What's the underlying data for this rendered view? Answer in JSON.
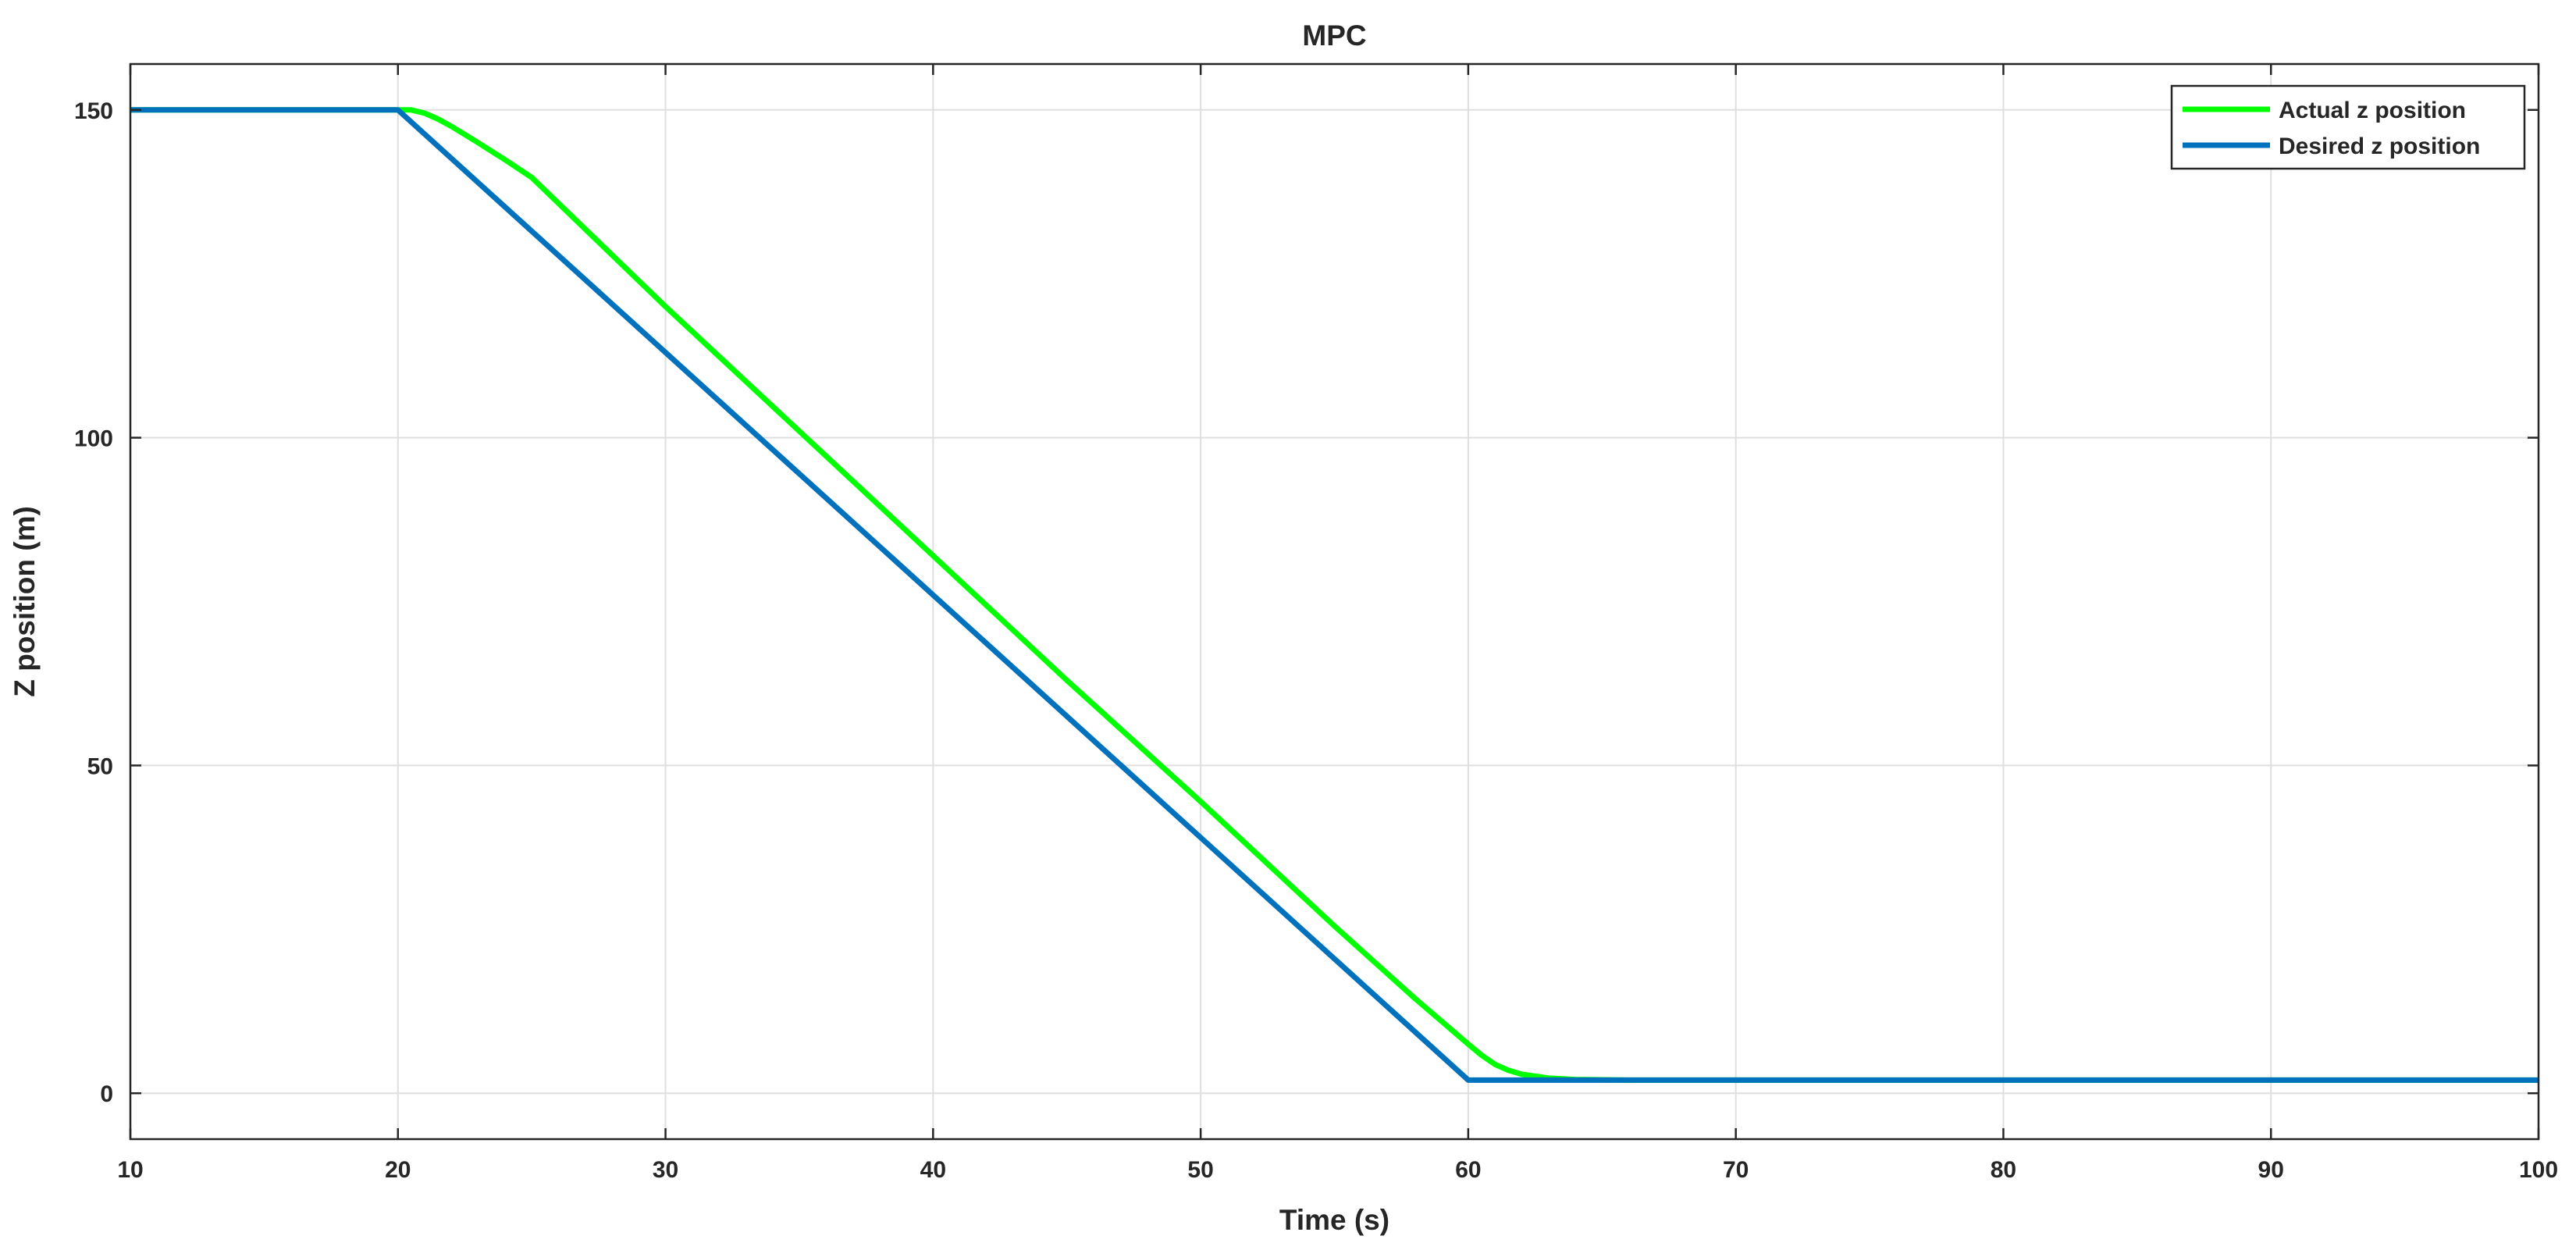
{
  "chart_data": {
    "type": "line",
    "title": "MPC",
    "xlabel": "Time (s)",
    "ylabel": "Z position (m)",
    "xlim": [
      10,
      100
    ],
    "ylim": [
      -7,
      157
    ],
    "xticks": [
      10,
      20,
      30,
      40,
      50,
      60,
      70,
      80,
      90,
      100
    ],
    "yticks": [
      0,
      50,
      100,
      150
    ],
    "grid": true,
    "legend_position": "top-right",
    "series": [
      {
        "name": "Actual z position",
        "color": "#00ff00",
        "points": [
          [
            10,
            150
          ],
          [
            20,
            150
          ],
          [
            20.5,
            150
          ],
          [
            21,
            149.5
          ],
          [
            21.5,
            148.6
          ],
          [
            22,
            147.5
          ],
          [
            23,
            145
          ],
          [
            24,
            142.4
          ],
          [
            25,
            139.7
          ],
          [
            30,
            120
          ],
          [
            35,
            101
          ],
          [
            40,
            82
          ],
          [
            45,
            63
          ],
          [
            50,
            44.5
          ],
          [
            55,
            25.5
          ],
          [
            58,
            14.5
          ],
          [
            59,
            11
          ],
          [
            60,
            7.5
          ],
          [
            60.5,
            5.8
          ],
          [
            61,
            4.4
          ],
          [
            61.5,
            3.5
          ],
          [
            62,
            2.9
          ],
          [
            63,
            2.3
          ],
          [
            64,
            2.1
          ],
          [
            66,
            2
          ],
          [
            100,
            2
          ]
        ]
      },
      {
        "name": "Desired z position",
        "color": "#0072bd",
        "points": [
          [
            10,
            150
          ],
          [
            20,
            150
          ],
          [
            60,
            2
          ],
          [
            100,
            2
          ]
        ]
      }
    ]
  }
}
